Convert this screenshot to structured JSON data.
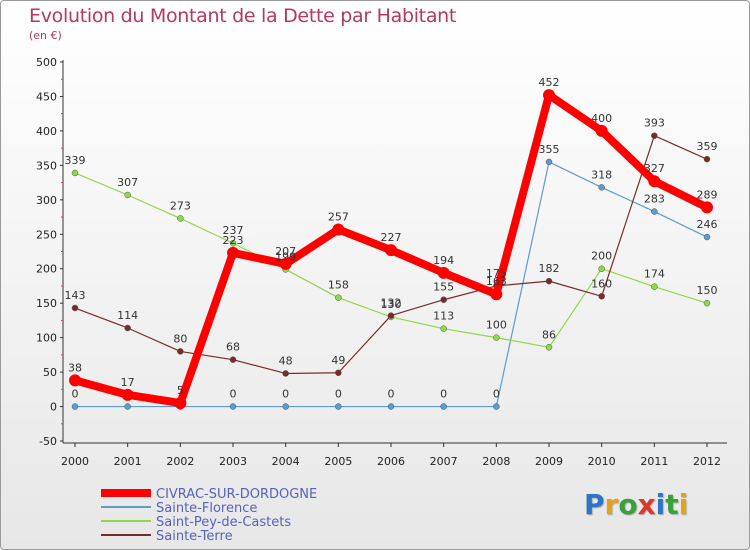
{
  "title": "Evolution du Montant de la Dette par Habitant",
  "unit": "(en €)",
  "logo": {
    "text": "Proxiti",
    "colors": [
      "#2e74c7",
      "#e3a21a",
      "#3aa13a",
      "#d93a2a",
      "#2e74c7",
      "#3aa13a",
      "#e3a21a"
    ]
  },
  "chart_data": {
    "type": "line",
    "x": [
      "2000",
      "2001",
      "2002",
      "2003",
      "2004",
      "2005",
      "2006",
      "2007",
      "2008",
      "2009",
      "2010",
      "2011",
      "2012"
    ],
    "ylim": [
      -50,
      500
    ],
    "yticks": [
      "-50",
      "0",
      "50",
      "100",
      "150",
      "200",
      "250",
      "300",
      "350",
      "400",
      "450",
      "500"
    ],
    "grid": false,
    "legend_placement": "bottom-left",
    "series": [
      {
        "name": "CIVRAC-SUR-DORDOGNE",
        "color": "#ff0000",
        "values": [
          38,
          17,
          5,
          223,
          207,
          257,
          227,
          194,
          163,
          452,
          400,
          327,
          289
        ],
        "labels": [
          "38",
          "17",
          "5",
          "223",
          "207",
          "257",
          "227",
          "194",
          "163",
          "452",
          "400",
          "327",
          "289"
        ]
      },
      {
        "name": "Sainte-Florence",
        "color": "#5d9bcf",
        "values": [
          0,
          0,
          0,
          0,
          0,
          0,
          0,
          0,
          0,
          355,
          318,
          283,
          246
        ],
        "labels": [
          "0",
          "",
          "",
          "0",
          "0",
          "0",
          "0",
          "0",
          "0",
          "355",
          "318",
          "283",
          "246"
        ]
      },
      {
        "name": "Saint-Pey-de-Castets",
        "color": "#8fd848",
        "values": [
          339,
          307,
          273,
          237,
          199,
          158,
          130,
          113,
          100,
          86,
          200,
          174,
          150
        ],
        "labels": [
          "339",
          "307",
          "273",
          "237",
          "199",
          "158",
          "130",
          "113",
          "100",
          "86",
          "200",
          "174",
          "150"
        ]
      },
      {
        "name": "Sainte-Terre",
        "color": "#7a2a2a",
        "values": [
          143,
          114,
          80,
          68,
          48,
          49,
          132,
          155,
          175,
          182,
          160,
          393,
          359
        ],
        "labels": [
          "143",
          "114",
          "80",
          "68",
          "48",
          "49",
          "132",
          "155",
          "175",
          "182",
          "160",
          "393",
          "359"
        ]
      }
    ]
  }
}
